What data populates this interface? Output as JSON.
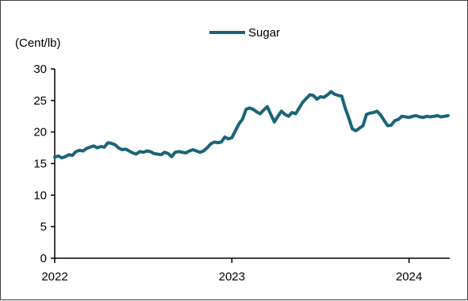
{
  "chart_data": {
    "type": "line",
    "title": "",
    "ylabel": "(Cent/lb)",
    "xlabel": "",
    "ylim": [
      0,
      30
    ],
    "y_ticks": [
      0,
      5,
      10,
      15,
      20,
      25,
      30
    ],
    "x_ticks": [
      {
        "label": "2022",
        "value": 2022.0
      },
      {
        "label": "2023",
        "value": 2023.0
      },
      {
        "label": "2024",
        "value": 2024.0
      }
    ],
    "xlim": [
      2022.0,
      2024.23
    ],
    "grid": false,
    "legend_position": "top-center",
    "series": [
      {
        "name": "Sugar",
        "color": "#1a6478",
        "x": [
          2022.0,
          2022.02,
          2022.04,
          2022.06,
          2022.08,
          2022.1,
          2022.12,
          2022.14,
          2022.16,
          2022.18,
          2022.2,
          2022.22,
          2022.24,
          2022.26,
          2022.28,
          2022.3,
          2022.32,
          2022.34,
          2022.36,
          2022.38,
          2022.4,
          2022.42,
          2022.44,
          2022.46,
          2022.48,
          2022.5,
          2022.52,
          2022.54,
          2022.56,
          2022.58,
          2022.6,
          2022.62,
          2022.64,
          2022.66,
          2022.68,
          2022.7,
          2022.72,
          2022.74,
          2022.76,
          2022.78,
          2022.8,
          2022.82,
          2022.84,
          2022.86,
          2022.88,
          2022.9,
          2022.92,
          2022.94,
          2022.96,
          2022.98,
          2023.0,
          2023.02,
          2023.04,
          2023.06,
          2023.08,
          2023.1,
          2023.12,
          2023.14,
          2023.16,
          2023.18,
          2023.2,
          2023.22,
          2023.24,
          2023.26,
          2023.28,
          2023.3,
          2023.32,
          2023.34,
          2023.36,
          2023.38,
          2023.4,
          2023.42,
          2023.44,
          2023.46,
          2023.48,
          2023.5,
          2023.52,
          2023.54,
          2023.56,
          2023.58,
          2023.6,
          2023.62,
          2023.64,
          2023.66,
          2023.68,
          2023.7,
          2023.72,
          2023.74,
          2023.76,
          2023.78,
          2023.8,
          2023.82,
          2023.84,
          2023.86,
          2023.88,
          2023.9,
          2023.92,
          2023.94,
          2023.96,
          2023.98,
          2024.0,
          2024.02,
          2024.04,
          2024.06,
          2024.08,
          2024.1,
          2024.12,
          2024.14,
          2024.16,
          2024.18,
          2024.2,
          2024.22
        ],
        "values": [
          16.0,
          16.2,
          15.9,
          16.1,
          16.4,
          16.3,
          16.9,
          17.1,
          17.0,
          17.4,
          17.6,
          17.8,
          17.5,
          17.7,
          17.6,
          18.3,
          18.2,
          18.0,
          17.5,
          17.2,
          17.3,
          17.0,
          16.7,
          16.5,
          16.9,
          16.8,
          17.0,
          16.9,
          16.6,
          16.5,
          16.4,
          16.8,
          16.6,
          16.1,
          16.8,
          16.9,
          16.8,
          16.7,
          17.0,
          17.2,
          17.0,
          16.8,
          17.0,
          17.5,
          18.1,
          18.4,
          18.3,
          18.4,
          19.2,
          18.9,
          19.1,
          20.2,
          21.3,
          22.0,
          23.6,
          23.8,
          23.6,
          23.2,
          22.9,
          23.5,
          24.0,
          22.8,
          21.6,
          22.5,
          23.3,
          22.8,
          22.5,
          23.1,
          22.9,
          23.8,
          24.7,
          25.3,
          25.9,
          25.8,
          25.2,
          25.6,
          25.5,
          25.9,
          26.4,
          26.0,
          25.8,
          25.7,
          23.8,
          22.2,
          20.5,
          20.2,
          20.6,
          21.0,
          22.8,
          23.0,
          23.1,
          23.3,
          22.7,
          21.8,
          21.0,
          21.1,
          21.8,
          22.0,
          22.5,
          22.4,
          22.3,
          22.5,
          22.6,
          22.4,
          22.3,
          22.5,
          22.4,
          22.5,
          22.6,
          22.4,
          22.5,
          22.6
        ]
      }
    ]
  }
}
